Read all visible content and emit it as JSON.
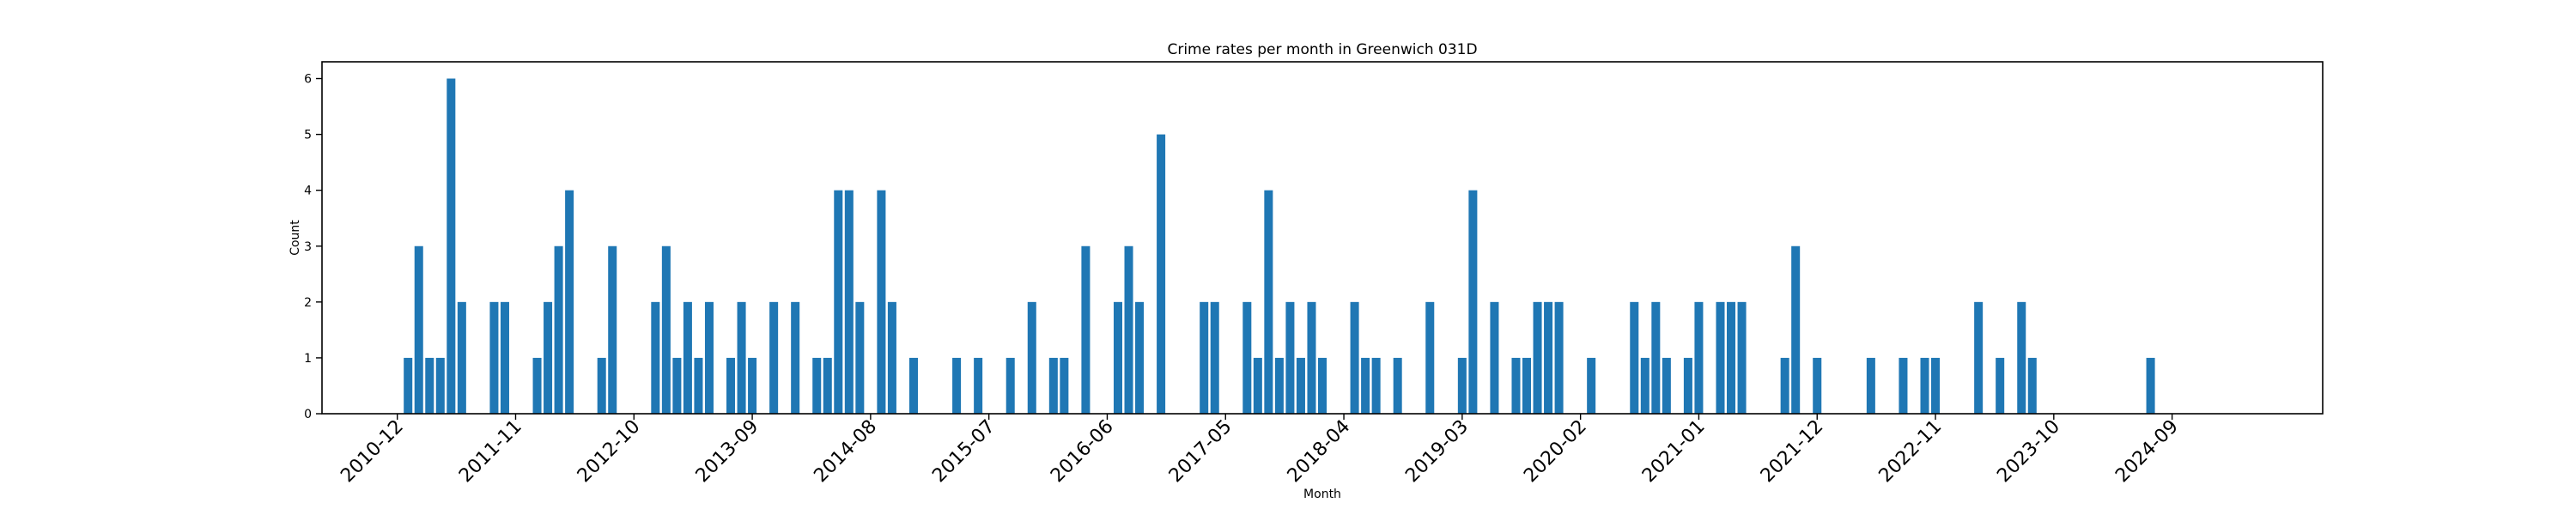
{
  "chart_data": {
    "type": "bar",
    "title": "Crime rates per month in Greenwich 031D",
    "xlabel": "Month",
    "ylabel": "Count",
    "bar_color": "#1f77b4",
    "ylim": [
      0,
      6.3
    ],
    "y_ticks": [
      0,
      1,
      2,
      3,
      4,
      5,
      6
    ],
    "x_ticks": [
      "2010-12",
      "2011-11",
      "2012-10",
      "2013-09",
      "2014-08",
      "2015-07",
      "2016-06",
      "2017-05",
      "2018-04",
      "2019-03",
      "2020-02",
      "2021-01",
      "2021-12",
      "2022-11",
      "2023-10",
      "2024-09"
    ],
    "x_range": [
      "2010-05",
      "2025-11"
    ],
    "grid": false,
    "categories": [
      "2011-01",
      "2011-02",
      "2011-03",
      "2011-04",
      "2011-05",
      "2011-06",
      "2011-09",
      "2011-10",
      "2012-01",
      "2012-02",
      "2012-03",
      "2012-04",
      "2012-07",
      "2012-08",
      "2012-12",
      "2013-01",
      "2013-02",
      "2013-03",
      "2013-04",
      "2013-05",
      "2013-07",
      "2013-08",
      "2013-09",
      "2013-11",
      "2014-01",
      "2014-03",
      "2014-04",
      "2014-05",
      "2014-06",
      "2014-07",
      "2014-09",
      "2014-10",
      "2014-12",
      "2015-04",
      "2015-06",
      "2015-09",
      "2015-11",
      "2016-01",
      "2016-02",
      "2016-04",
      "2016-07",
      "2016-08",
      "2016-09",
      "2016-11",
      "2017-03",
      "2017-04",
      "2017-07",
      "2017-08",
      "2017-09",
      "2017-10",
      "2017-11",
      "2017-12",
      "2018-01",
      "2018-02",
      "2018-05",
      "2018-06",
      "2018-07",
      "2018-09",
      "2018-12",
      "2019-03",
      "2019-04",
      "2019-06",
      "2019-08",
      "2019-09",
      "2019-10",
      "2019-11",
      "2019-12",
      "2020-03",
      "2020-07",
      "2020-08",
      "2020-09",
      "2020-10",
      "2020-12",
      "2021-01",
      "2021-03",
      "2021-04",
      "2021-05",
      "2021-09",
      "2021-10",
      "2021-12",
      "2022-05",
      "2022-08",
      "2022-10",
      "2022-11",
      "2023-03",
      "2023-05",
      "2023-07",
      "2023-08",
      "2024-07"
    ],
    "values": [
      1,
      3,
      1,
      1,
      6,
      2,
      2,
      2,
      1,
      2,
      3,
      4,
      1,
      3,
      2,
      3,
      1,
      2,
      1,
      2,
      1,
      2,
      1,
      2,
      2,
      1,
      1,
      4,
      4,
      2,
      4,
      2,
      1,
      1,
      1,
      1,
      2,
      1,
      1,
      3,
      2,
      3,
      2,
      5,
      2,
      2,
      2,
      1,
      4,
      1,
      2,
      1,
      2,
      1,
      2,
      1,
      1,
      1,
      2,
      1,
      4,
      2,
      1,
      1,
      2,
      2,
      2,
      1,
      2,
      1,
      2,
      1,
      1,
      2,
      2,
      2,
      2,
      1,
      3,
      1,
      1,
      1,
      1,
      1,
      2,
      1,
      2,
      1,
      1
    ]
  }
}
